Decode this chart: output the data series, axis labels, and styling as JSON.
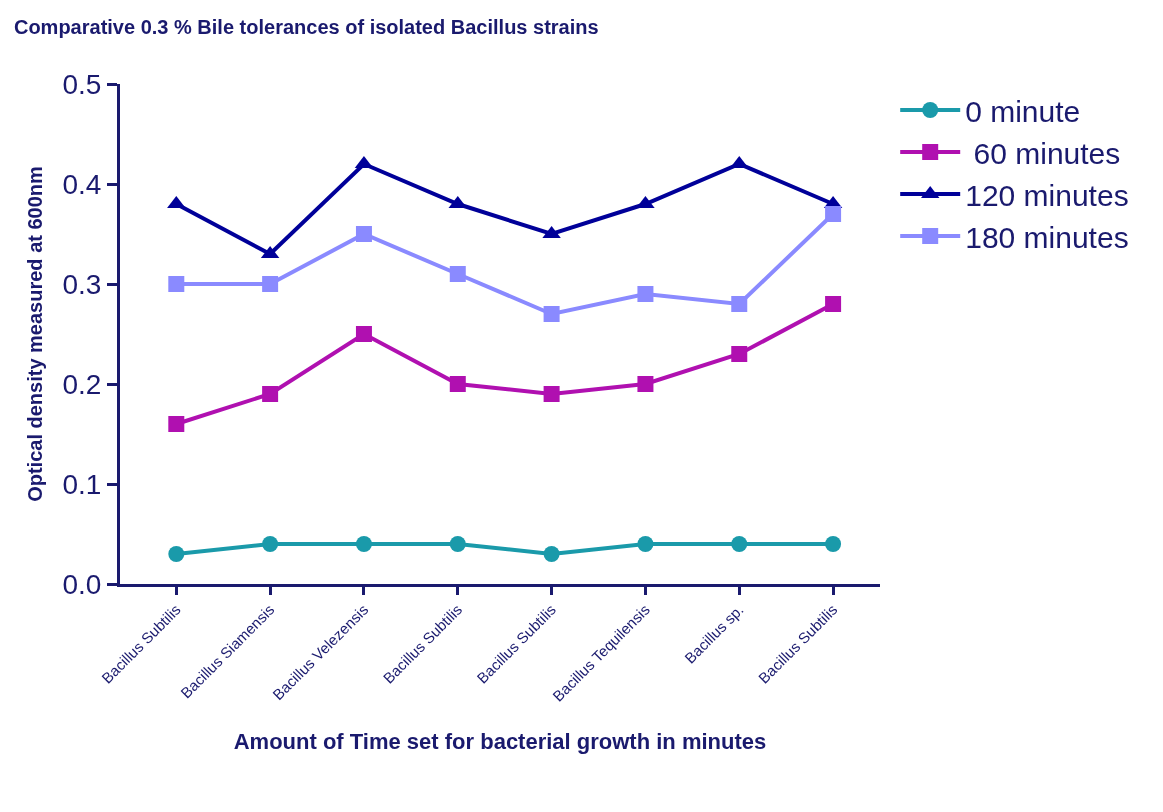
{
  "chart_data": {
    "type": "line",
    "title": "Comparative 0.3 % Bile tolerances of isolated Bacillus strains",
    "xlabel": "Amount of Time set for bacterial growth in minutes",
    "ylabel": "Optical density measured at 600nm",
    "categories": [
      "Bacillus Subtilis",
      "Bacillus Siamensis",
      "Bacillus Velezensis",
      "Bacillus Subtilis",
      "Bacillus Subtilis",
      "Bacillus Tequilensis",
      "Bacillus sp.",
      "Bacillus Subtilis"
    ],
    "series": [
      {
        "name": "0 minute",
        "color": "#1a9aaa",
        "marker": "circle",
        "values": [
          0.03,
          0.04,
          0.04,
          0.04,
          0.03,
          0.04,
          0.04,
          0.04
        ]
      },
      {
        "name": " 60 minutes",
        "color": "#b010b0",
        "marker": "square",
        "values": [
          0.16,
          0.19,
          0.25,
          0.2,
          0.19,
          0.2,
          0.23,
          0.28
        ]
      },
      {
        "name": "120 minutes",
        "color": "#000099",
        "marker": "triangle",
        "values": [
          0.38,
          0.33,
          0.42,
          0.38,
          0.35,
          0.38,
          0.42,
          0.38
        ]
      },
      {
        "name": "180 minutes",
        "color": "#8a8aff",
        "marker": "square",
        "values": [
          0.3,
          0.3,
          0.35,
          0.31,
          0.27,
          0.29,
          0.28,
          0.37
        ]
      }
    ],
    "ylim": [
      0,
      0.5
    ],
    "yticks": [
      {
        "value": 0,
        "label": "0.0"
      },
      {
        "value": 0.1,
        "label": "0.1"
      },
      {
        "value": 0.2,
        "label": "0.2"
      },
      {
        "value": 0.3,
        "label": "0.3"
      },
      {
        "value": 0.4,
        "label": "0.4"
      },
      {
        "value": 0.5,
        "label": "0.5"
      }
    ],
    "legend": "top right",
    "line_style": "solid"
  }
}
